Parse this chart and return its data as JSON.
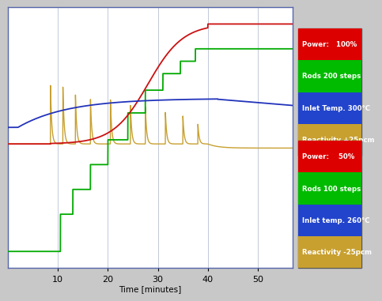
{
  "title": "",
  "xlabel": "Time [minutes]",
  "xlim": [
    0,
    57
  ],
  "ylim": [
    -0.18,
    1.08
  ],
  "bg_color": "#c8c8c8",
  "plot_bg_color": "#ffffff",
  "legend_top": {
    "entries": [
      "Power:   100%",
      "Rods 200 steps",
      "Inlet Temp. 300°C",
      "Reactivity +25pcm"
    ],
    "colors": [
      "#dd0000",
      "#00bb00",
      "#2244cc",
      "#c8a030"
    ]
  },
  "legend_bottom": {
    "entries": [
      "Power:    50%",
      "Rods 100 steps",
      "Inlet temp. 260°C",
      "Reactivity -25pcm"
    ],
    "colors": [
      "#dd0000",
      "#00bb00",
      "#2244cc",
      "#c8a030"
    ]
  },
  "xticks": [
    10,
    20,
    30,
    40,
    50
  ],
  "tick_fontsize": 8,
  "line_colors": [
    "#cc1111",
    "#00aa00",
    "#2233bb",
    "#c8a030"
  ],
  "spine_color": "#5566aa"
}
